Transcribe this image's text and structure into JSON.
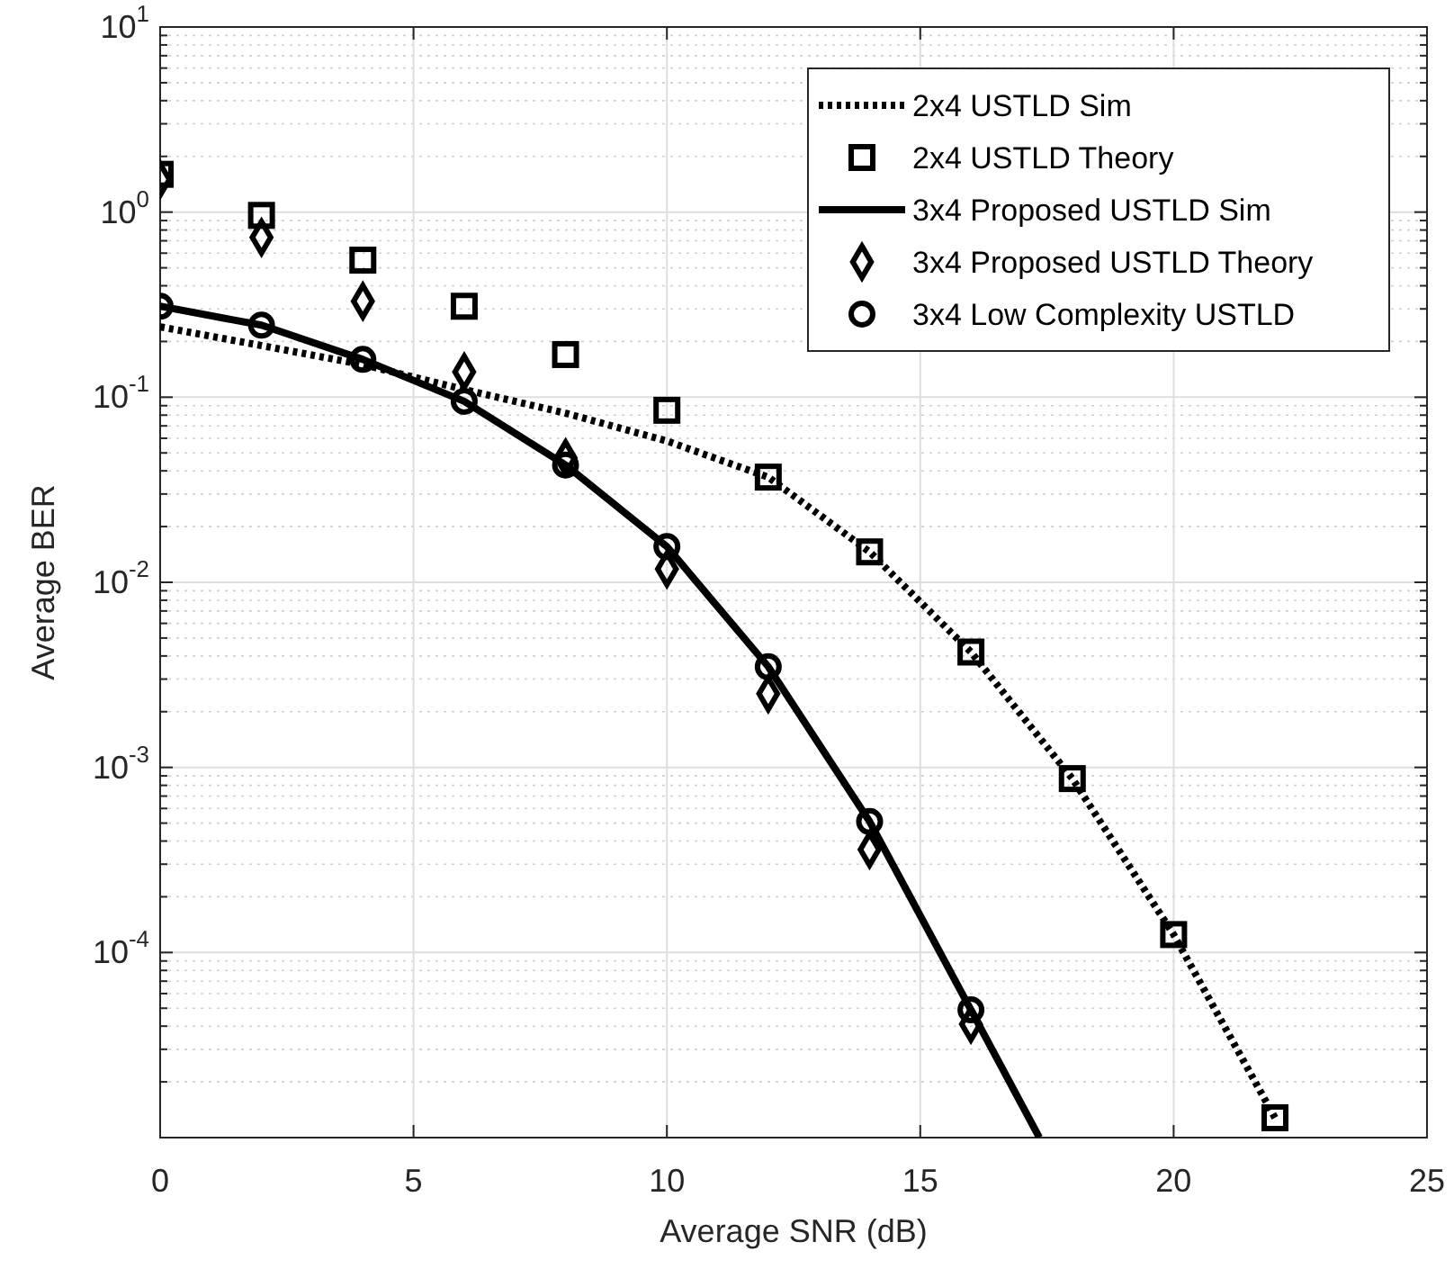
{
  "chart_data": {
    "type": "line",
    "xlabel": "Average SNR (dB)",
    "ylabel": "Average BER",
    "xlim": [
      0,
      25
    ],
    "xticks": [
      0,
      5,
      10,
      15,
      20,
      25
    ],
    "ylim": [
      1e-05,
      10
    ],
    "log": "y",
    "yticks": [
      {
        "value": 0.0001,
        "label": "10$^{-4}$"
      },
      {
        "value": 0.001,
        "label": "10$^{-3}$"
      },
      {
        "value": 0.01,
        "label": "10$^{-2}$"
      },
      {
        "value": 0.1,
        "label": "10$^{-1}$"
      },
      {
        "value": 1,
        "label": "10$^{0}$"
      },
      {
        "value": 10,
        "label": "10$^{1}$"
      }
    ],
    "grid": true,
    "legend": "top right",
    "series": [
      {
        "name": "2x4 USTLD Sim",
        "color": "#000000",
        "line_style": "dotted",
        "marker": "none",
        "x": [
          0,
          2,
          4,
          6,
          8,
          10,
          12,
          14,
          16,
          18,
          20,
          22
        ],
        "values": [
          0.24,
          0.19,
          0.15,
          0.11,
          0.082,
          0.058,
          0.037,
          0.0146,
          0.0042,
          0.00087,
          0.000125,
          1.28e-05
        ]
      },
      {
        "name": "2x4 USTLD Theory",
        "type": "scatter",
        "color": "#000000",
        "marker": "square",
        "x": [
          0,
          2,
          4,
          6,
          8,
          10,
          12,
          14,
          16,
          18,
          20,
          22
        ],
        "values": [
          1.6,
          0.96,
          0.55,
          0.31,
          0.17,
          0.085,
          0.037,
          0.0146,
          0.0042,
          0.00087,
          0.000125,
          1.28e-05
        ]
      },
      {
        "name": "3x4 Proposed USTLD Sim",
        "color": "#000000",
        "line_style": "solid",
        "marker": "none",
        "x": [
          0,
          2,
          4,
          6,
          8,
          10,
          12,
          14,
          16,
          17.35
        ],
        "values": [
          0.31,
          0.245,
          0.16,
          0.095,
          0.043,
          0.0156,
          0.0035,
          0.00051,
          4.9e-05,
          1e-05
        ]
      },
      {
        "name": "3x4 Proposed USTLD Theory",
        "type": "scatter",
        "color": "#000000",
        "marker": "diamond",
        "x": [
          0,
          2,
          4,
          6,
          8,
          10,
          12,
          14,
          16
        ],
        "values": [
          1.5,
          0.73,
          0.33,
          0.137,
          0.047,
          0.0118,
          0.0025,
          0.00036,
          4.1e-05
        ]
      },
      {
        "name": "3x4 Low Complexity USTLD",
        "type": "scatter",
        "color": "#000000",
        "marker": "circle",
        "x": [
          0,
          2,
          4,
          6,
          8,
          10,
          12,
          14,
          16
        ],
        "values": [
          0.31,
          0.245,
          0.16,
          0.095,
          0.043,
          0.0156,
          0.0035,
          0.00051,
          4.9e-05
        ]
      }
    ]
  }
}
